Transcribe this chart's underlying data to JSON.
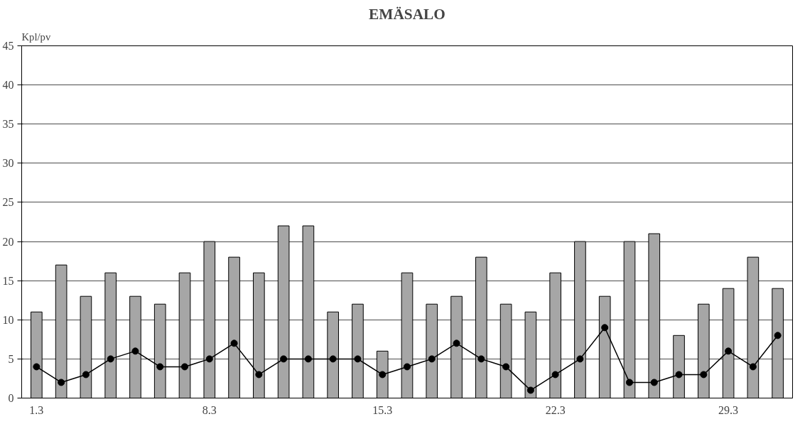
{
  "chart_data": {
    "type": "bar",
    "title": "EMÄSALO",
    "ylabel": "Kpl/pv",
    "categories": [
      "1.3",
      null,
      null,
      null,
      null,
      null,
      null,
      "8.3",
      null,
      null,
      null,
      null,
      null,
      null,
      "15.3",
      null,
      null,
      null,
      null,
      null,
      null,
      "22.3",
      null,
      null,
      null,
      null,
      null,
      null,
      "29.3",
      null,
      null
    ],
    "series": [
      {
        "color": "#a6a6a6",
        "values": [
          11,
          17,
          13,
          16,
          13,
          12,
          16,
          20,
          18,
          16,
          22,
          22,
          11,
          12,
          6,
          16,
          12,
          13,
          18,
          12,
          11,
          16,
          20,
          13,
          20,
          21,
          8,
          12,
          14,
          18,
          14
        ]
      },
      {
        "type": "line",
        "color": "#000000",
        "marker": "circle",
        "values": [
          4,
          2,
          3,
          5,
          6,
          4,
          4,
          5,
          7,
          3,
          5,
          5,
          5,
          5,
          3,
          4,
          5,
          7,
          5,
          4,
          1,
          3,
          5,
          9,
          2,
          2,
          3,
          3,
          6,
          4,
          8
        ]
      }
    ],
    "ylim": [
      0,
      45
    ],
    "yticks": [
      0,
      5,
      10,
      15,
      20,
      25,
      30,
      35,
      40,
      45
    ],
    "grid": "y"
  }
}
